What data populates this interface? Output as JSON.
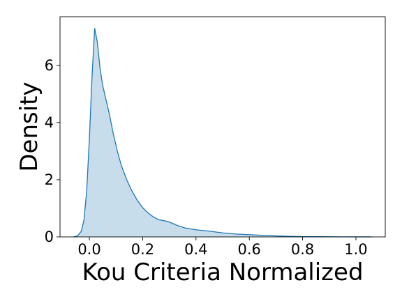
{
  "chart_data": {
    "type": "area",
    "title": "",
    "xlabel": "Kou Criteria Normalized",
    "ylabel": "Density",
    "xlim": [
      -0.11,
      1.11
    ],
    "ylim": [
      0,
      7.7
    ],
    "xticks": [
      0.0,
      0.2,
      0.4,
      0.6,
      0.8,
      1.0
    ],
    "xtick_labels": [
      "0.0",
      "0.2",
      "0.4",
      "0.6",
      "0.8",
      "1.0"
    ],
    "yticks": [
      0,
      2,
      4,
      6
    ],
    "ytick_labels": [
      "0",
      "2",
      "4",
      "6"
    ],
    "grid": false,
    "legend": "none",
    "series": [
      {
        "color": "#1f77b4",
        "fill_color": "#1f77b4",
        "fill_opacity": 0.25,
        "x": [
          -0.06,
          -0.045,
          -0.03,
          -0.02,
          -0.01,
          0.0,
          0.01,
          0.02,
          0.03,
          0.04,
          0.05,
          0.06,
          0.075,
          0.09,
          0.105,
          0.12,
          0.14,
          0.16,
          0.18,
          0.2,
          0.22,
          0.24,
          0.26,
          0.28,
          0.3,
          0.33,
          0.36,
          0.4,
          0.45,
          0.5,
          0.55,
          0.6,
          0.65,
          0.7,
          0.75,
          0.8,
          0.85,
          0.9,
          0.95,
          1.0,
          1.05,
          1.06
        ],
        "y": [
          0.0,
          0.03,
          0.2,
          0.6,
          1.6,
          3.4,
          5.6,
          7.3,
          6.8,
          5.9,
          5.3,
          4.9,
          4.3,
          3.6,
          3.0,
          2.5,
          2.0,
          1.6,
          1.28,
          1.02,
          0.84,
          0.7,
          0.6,
          0.57,
          0.52,
          0.4,
          0.31,
          0.25,
          0.2,
          0.14,
          0.1,
          0.08,
          0.055,
          0.035,
          0.02,
          0.012,
          0.008,
          0.005,
          0.003,
          0.002,
          0.001,
          0.0
        ]
      }
    ]
  }
}
